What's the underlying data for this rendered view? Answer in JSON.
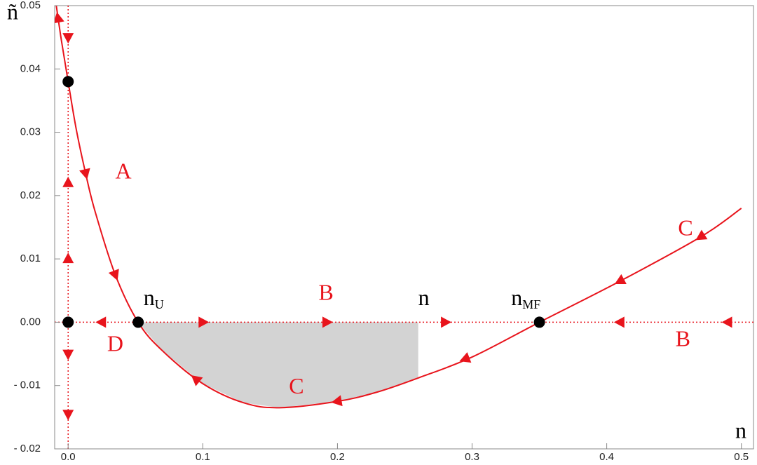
{
  "chart_data": {
    "type": "phase-portrait",
    "x_label": "n",
    "y_label": "ñ",
    "xlim": [
      -0.01,
      0.509
    ],
    "ylim": [
      -0.02,
      0.05
    ],
    "xticks": [
      {
        "value": 0,
        "label": "0.0"
      },
      0.1,
      0.2,
      0.3,
      0.4,
      0.5
    ],
    "yticks": [
      {
        "value": -0.02,
        "label": "- 0.02"
      },
      {
        "value": -0.01,
        "label": "- 0.01"
      },
      {
        "value": 0,
        "label": "0.00"
      },
      0.01,
      0.02,
      0.03,
      0.04,
      0.05
    ],
    "line_color": "#e8141c",
    "series": [
      {
        "x": [
          -0.0088,
          -0.005,
          0,
          0.006,
          0.013,
          0.02,
          0.035,
          0.052,
          0.07,
          0.1,
          0.13,
          0.157,
          0.2,
          0.23,
          0.26,
          0.3,
          0.35,
          0.41,
          0.47,
          0.5
        ],
        "values": [
          0.05,
          0.0445,
          0.038,
          0.0305,
          0.0235,
          0.0175,
          0.0075,
          0,
          -0.0045,
          -0.0097,
          -0.0127,
          -0.0135,
          -0.0125,
          -0.011,
          -0.0088,
          -0.0055,
          0,
          0.0065,
          0.0135,
          0.018
        ]
      }
    ],
    "nullclines": {
      "x": 0,
      "y": 0
    },
    "shaded_region": {
      "from": 0.052,
      "to": 0.26,
      "color": "#d3d3d3"
    },
    "fixed_points": [
      {
        "x": 0,
        "y": 0.038
      },
      {
        "x": 0,
        "y": 0
      },
      {
        "x": 0.052,
        "y": 0
      },
      {
        "x": 0.35,
        "y": 0
      }
    ],
    "arrows": [
      {
        "x": -0.0075,
        "y": 0.048,
        "direction": "backward"
      },
      {
        "x": 0.013,
        "y": 0.0235,
        "direction": "forward"
      },
      {
        "x": 0.035,
        "y": 0.0075,
        "direction": "forward"
      },
      {
        "x": 0.095,
        "y": -0.009,
        "direction": "backward"
      },
      {
        "x": 0.2,
        "y": -0.0125,
        "direction": "backward"
      },
      {
        "x": 0.295,
        "y": -0.0058,
        "direction": "backward"
      },
      {
        "x": 0.41,
        "y": 0.0065,
        "direction": "backward"
      },
      {
        "x": 0.47,
        "y": 0.0135,
        "direction": "backward"
      },
      {
        "x": 0,
        "y": 0.045,
        "direction": "down"
      },
      {
        "x": 0,
        "y": 0.022,
        "direction": "up"
      },
      {
        "x": 0,
        "y": 0.01,
        "direction": "up"
      },
      {
        "x": 0,
        "y": -0.005,
        "direction": "down"
      },
      {
        "x": 0,
        "y": -0.0145,
        "direction": "down"
      },
      {
        "x": 0.025,
        "y": 0,
        "direction": "left"
      },
      {
        "x": 0.1,
        "y": 0,
        "direction": "right"
      },
      {
        "x": 0.192,
        "y": 0,
        "direction": "right"
      },
      {
        "x": 0.28,
        "y": 0,
        "direction": "right"
      },
      {
        "x": 0.41,
        "y": 0,
        "direction": "left"
      },
      {
        "x": 0.49,
        "y": 0,
        "direction": "left"
      }
    ],
    "annotations": [
      {
        "text": "A",
        "x": 0.035,
        "y": 0.0235,
        "color": "#e8141c"
      },
      {
        "text": "B",
        "x": 0.186,
        "y": 0.0043,
        "color": "#e8141c"
      },
      {
        "text": "B",
        "x": 0.451,
        "y": -0.003,
        "color": "#e8141c"
      },
      {
        "text": "C",
        "x": 0.453,
        "y": 0.0145,
        "color": "#e8141c"
      },
      {
        "text": "C",
        "x": 0.164,
        "y": -0.0105,
        "color": "#e8141c"
      },
      {
        "text": "D",
        "x": 0.029,
        "y": -0.0038,
        "color": "#e8141c"
      },
      {
        "text": "n",
        "x": 0.26,
        "y": 0.0035,
        "color": "#000000"
      },
      {
        "text": "n",
        "sub": "U",
        "x": 0.056,
        "y": 0.0035,
        "color": "#000000"
      },
      {
        "text": "n",
        "sub": "MF",
        "x": 0.329,
        "y": 0.0035,
        "color": "#000000"
      }
    ]
  }
}
